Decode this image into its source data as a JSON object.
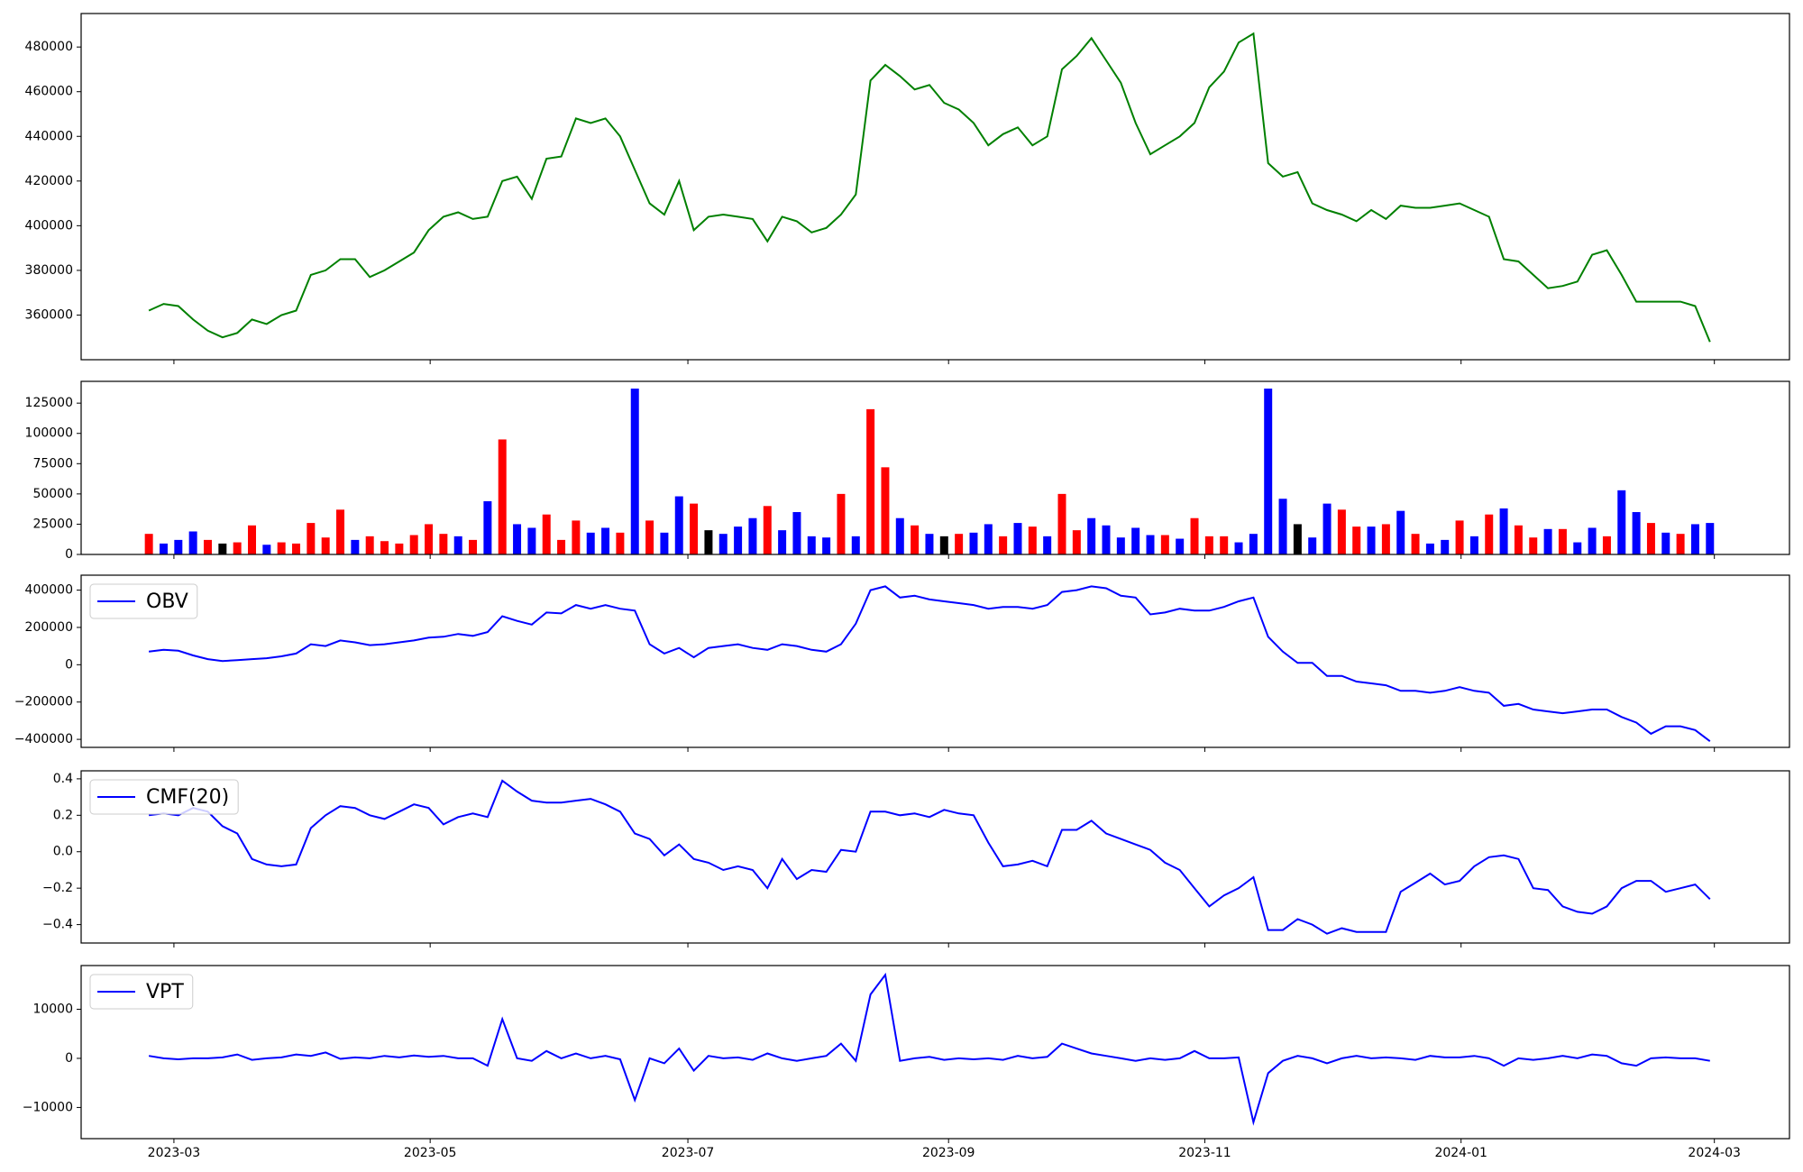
{
  "chart_data": {
    "type": "panels",
    "xlim": [
      -4.6,
      111.4
    ],
    "xticks": [
      {
        "value": 1.7,
        "label": "2023-03"
      },
      {
        "value": 19.1,
        "label": "2023-05"
      },
      {
        "value": 36.6,
        "label": "2023-07"
      },
      {
        "value": 54.3,
        "label": "2023-09"
      },
      {
        "value": 71.7,
        "label": "2023-11"
      },
      {
        "value": 89.1,
        "label": "2024-01"
      },
      {
        "value": 106.3,
        "label": "2024-03"
      }
    ],
    "panels": [
      {
        "type": "line",
        "ylim": [
          340000,
          495000
        ],
        "yticks": [
          360000,
          380000,
          400000,
          420000,
          440000,
          460000,
          480000
        ],
        "series": [
          {
            "color": "green",
            "values": [
              362000,
              365000,
              364000,
              358000,
              353000,
              350000,
              352000,
              358000,
              356000,
              360000,
              362000,
              378000,
              380000,
              385000,
              385000,
              377000,
              380000,
              384000,
              388000,
              398000,
              404000,
              406000,
              403000,
              404000,
              420000,
              422000,
              412000,
              430000,
              431000,
              448000,
              446000,
              448000,
              440000,
              425000,
              410000,
              405000,
              420000,
              398000,
              404000,
              405000,
              404000,
              403000,
              393000,
              404000,
              402000,
              397000,
              399000,
              405000,
              414000,
              465000,
              472000,
              467000,
              461000,
              463000,
              455000,
              452000,
              446000,
              436000,
              441000,
              444000,
              436000,
              440000,
              470000,
              476000,
              484000,
              474000,
              464000,
              446000,
              432000,
              436000,
              440000,
              446000,
              462000,
              469000,
              482000,
              486000,
              428000,
              422000,
              424000,
              410000,
              407000,
              405000,
              402000,
              407000,
              403000,
              409000,
              408000,
              408000,
              409000,
              410000,
              407000,
              404000,
              385000,
              384000,
              378000,
              372000,
              373000,
              375000,
              387000,
              389000,
              378000,
              366000,
              366000,
              366000,
              366000,
              364000,
              348000
            ]
          }
        ]
      },
      {
        "type": "bar",
        "ylim": [
          0,
          143000
        ],
        "yticks": [
          0,
          25000,
          50000,
          75000,
          100000,
          125000
        ],
        "values": [
          17000,
          9000,
          12000,
          19000,
          12000,
          9000,
          10000,
          24000,
          8000,
          10000,
          9000,
          26000,
          14000,
          37000,
          12000,
          15000,
          11000,
          9000,
          16000,
          25000,
          17000,
          15000,
          12000,
          44000,
          95000,
          25000,
          22000,
          33000,
          12000,
          28000,
          18000,
          22000,
          18000,
          137000,
          28000,
          18000,
          48000,
          42000,
          20000,
          17000,
          23000,
          30000,
          40000,
          20000,
          35000,
          15000,
          14000,
          50000,
          15000,
          120000,
          72000,
          30000,
          24000,
          17000,
          15000,
          17000,
          18000,
          25000,
          15000,
          26000,
          23000,
          15000,
          50000,
          20000,
          30000,
          24000,
          14000,
          22000,
          16000,
          16000,
          13000,
          30000,
          15000,
          15000,
          10000,
          17000,
          137000,
          46000,
          25000,
          14000,
          42000,
          37000,
          23000,
          23000,
          25000,
          36000,
          17000,
          9000,
          12000,
          28000,
          15000,
          33000,
          38000,
          24000,
          14000,
          21000,
          21000,
          10000,
          22000,
          15000,
          53000,
          35000,
          26000,
          18000,
          17000,
          25000,
          26000
        ],
        "colors": [
          "red",
          "blue",
          "blue",
          "blue",
          "red",
          "black",
          "red",
          "red",
          "blue",
          "red",
          "red",
          "red",
          "red",
          "red",
          "blue",
          "red",
          "red",
          "red",
          "red",
          "red",
          "red",
          "blue",
          "red",
          "blue",
          "red",
          "blue",
          "blue",
          "red",
          "red",
          "red",
          "blue",
          "blue",
          "red",
          "blue",
          "red",
          "blue",
          "blue",
          "red",
          "black",
          "blue",
          "blue",
          "blue",
          "red",
          "blue",
          "blue",
          "blue",
          "blue",
          "red",
          "blue",
          "red",
          "red",
          "blue",
          "red",
          "blue",
          "black",
          "red",
          "blue",
          "blue",
          "red",
          "blue",
          "red",
          "blue",
          "red",
          "red",
          "blue",
          "blue",
          "blue",
          "blue",
          "blue",
          "red",
          "blue",
          "red",
          "red",
          "red",
          "blue",
          "blue",
          "blue",
          "blue",
          "black",
          "blue",
          "blue",
          "red",
          "red",
          "blue",
          "red",
          "blue",
          "red",
          "blue",
          "blue",
          "red",
          "blue",
          "red",
          "blue",
          "red",
          "red",
          "blue",
          "red",
          "blue",
          "blue",
          "red",
          "blue",
          "blue",
          "red",
          "blue",
          "red",
          "blue",
          "blue"
        ]
      },
      {
        "type": "line",
        "ylim": [
          -443000,
          480000
        ],
        "legend": "upper left",
        "yticks": [
          {
            "value": -400000,
            "label": "−400000"
          },
          {
            "value": -200000,
            "label": "−200000"
          },
          0,
          200000,
          400000
        ],
        "series": [
          {
            "name": "OBV",
            "color": "blue",
            "values": [
              70000,
              80000,
              75000,
              50000,
              30000,
              20000,
              25000,
              30000,
              35000,
              45000,
              60000,
              110000,
              100000,
              130000,
              120000,
              105000,
              110000,
              120000,
              130000,
              145000,
              150000,
              165000,
              155000,
              175000,
              260000,
              235000,
              215000,
              280000,
              275000,
              320000,
              300000,
              320000,
              300000,
              290000,
              110000,
              60000,
              90000,
              40000,
              90000,
              100000,
              110000,
              90000,
              80000,
              110000,
              100000,
              80000,
              70000,
              110000,
              220000,
              400000,
              420000,
              360000,
              370000,
              350000,
              340000,
              330000,
              320000,
              300000,
              310000,
              310000,
              300000,
              320000,
              390000,
              400000,
              420000,
              410000,
              370000,
              360000,
              270000,
              280000,
              300000,
              290000,
              290000,
              310000,
              340000,
              360000,
              150000,
              70000,
              10000,
              10000,
              -60000,
              -60000,
              -90000,
              -100000,
              -110000,
              -140000,
              -140000,
              -150000,
              -140000,
              -120000,
              -140000,
              -150000,
              -220000,
              -210000,
              -240000,
              -250000,
              -260000,
              -250000,
              -240000,
              -240000,
              -280000,
              -310000,
              -370000,
              -330000,
              -330000,
              -350000,
              -410000
            ]
          }
        ]
      },
      {
        "type": "line",
        "ylim": [
          -0.501,
          0.444
        ],
        "legend": "upper left",
        "yticks": [
          {
            "value": -0.4,
            "label": "−0.4"
          },
          {
            "value": -0.2,
            "label": "−0.2"
          },
          {
            "value": 0,
            "label": "0.0"
          },
          0.2,
          0.4
        ],
        "series": [
          {
            "name": "CMF(20)",
            "color": "blue",
            "values": [
              0.2,
              0.21,
              0.2,
              0.24,
              0.22,
              0.14,
              0.1,
              -0.04,
              -0.07,
              -0.08,
              -0.07,
              0.13,
              0.2,
              0.25,
              0.24,
              0.2,
              0.18,
              0.22,
              0.26,
              0.24,
              0.15,
              0.19,
              0.21,
              0.19,
              0.39,
              0.33,
              0.28,
              0.27,
              0.27,
              0.28,
              0.29,
              0.26,
              0.22,
              0.1,
              0.07,
              -0.02,
              0.04,
              -0.04,
              -0.06,
              -0.1,
              -0.08,
              -0.1,
              -0.2,
              -0.04,
              -0.15,
              -0.1,
              -0.11,
              0.01,
              0.0,
              0.22,
              0.22,
              0.2,
              0.21,
              0.19,
              0.23,
              0.21,
              0.2,
              0.05,
              -0.08,
              -0.07,
              -0.05,
              -0.08,
              0.12,
              0.12,
              0.17,
              0.1,
              0.07,
              0.04,
              0.01,
              -0.06,
              -0.1,
              -0.2,
              -0.3,
              -0.24,
              -0.2,
              -0.14,
              -0.43,
              -0.43,
              -0.37,
              -0.4,
              -0.45,
              -0.42,
              -0.44,
              -0.44,
              -0.44,
              -0.22,
              -0.17,
              -0.12,
              -0.18,
              -0.16,
              -0.08,
              -0.03,
              -0.02,
              -0.04,
              -0.2,
              -0.21,
              -0.3,
              -0.33,
              -0.34,
              -0.3,
              -0.2,
              -0.16,
              -0.16,
              -0.22,
              -0.2,
              -0.18,
              -0.26
            ]
          }
        ]
      },
      {
        "type": "line",
        "ylim": [
          -16350,
          18900
        ],
        "legend": "upper left",
        "yticks": [
          {
            "value": -10000,
            "label": "−10000"
          },
          0,
          10000
        ],
        "series": [
          {
            "name": "VPT",
            "color": "blue",
            "values": [
              500,
              0,
              -200,
              0,
              0,
              200,
              800,
              -300,
              0,
              200,
              800,
              500,
              1200,
              -100,
              200,
              0,
              500,
              200,
              600,
              300,
              500,
              0,
              0,
              -1500,
              8000,
              0,
              -500,
              1500,
              0,
              1000,
              0,
              500,
              -200,
              -8500,
              0,
              -1000,
              2000,
              -2500,
              500,
              0,
              200,
              -300,
              1000,
              0,
              -500,
              0,
              500,
              3000,
              -500,
              13000,
              17000,
              -500,
              0,
              300,
              -300,
              0,
              -200,
              0,
              -300,
              500,
              0,
              300,
              3000,
              2000,
              1000,
              500,
              0,
              -500,
              0,
              -300,
              0,
              1500,
              0,
              0,
              200,
              -13000,
              -3000,
              -500,
              500,
              0,
              -1000,
              0,
              500,
              0,
              200,
              0,
              -300,
              500,
              200,
              200,
              500,
              0,
              -1500,
              0,
              -300,
              0,
              500,
              0,
              800,
              500,
              -1000,
              -1500,
              0,
              200,
              0,
              0,
              -500
            ]
          }
        ]
      }
    ]
  }
}
